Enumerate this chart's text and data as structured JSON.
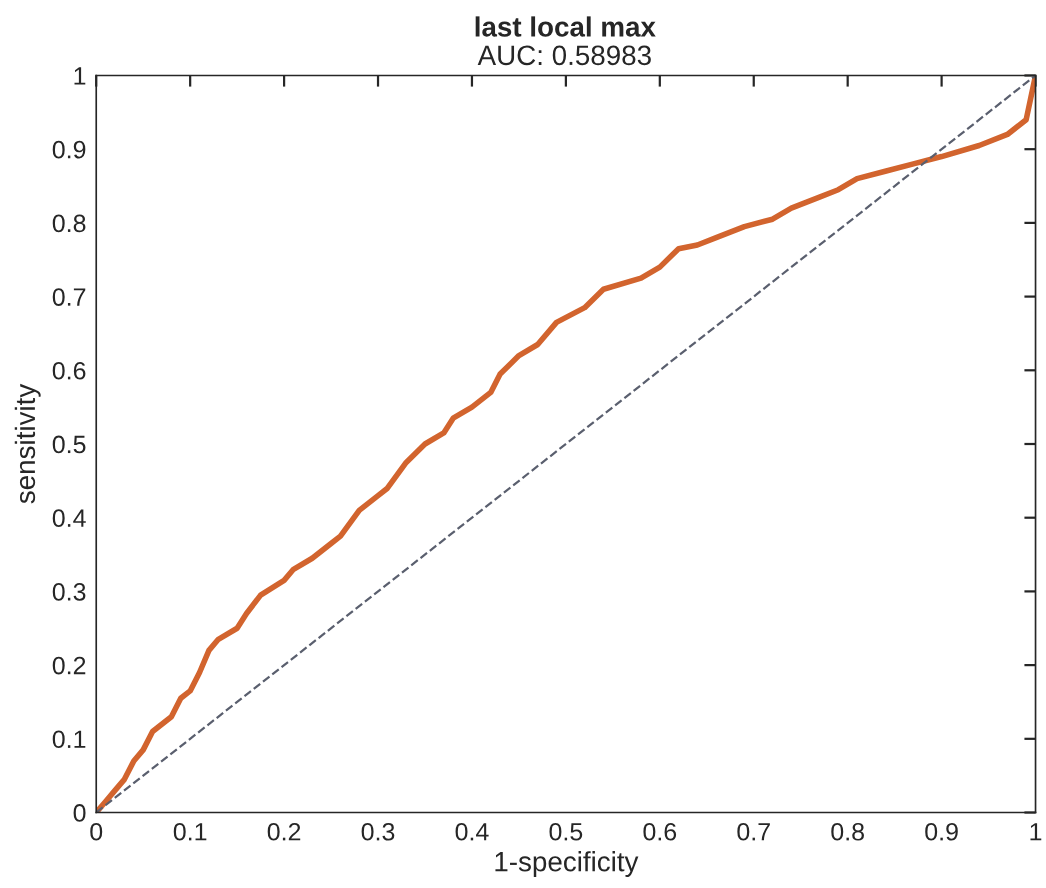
{
  "chart_data": {
    "type": "line",
    "title": "last local max",
    "subtitle": "AUC: 0.58983",
    "xlabel": "1-specificity",
    "ylabel": "sensitivity",
    "xlim": [
      0,
      1
    ],
    "ylim": [
      0,
      1
    ],
    "xticks": [
      0,
      0.1,
      0.2,
      0.3,
      0.4,
      0.5,
      0.6,
      0.7,
      0.8,
      0.9,
      1
    ],
    "yticks": [
      0,
      0.1,
      0.2,
      0.3,
      0.4,
      0.5,
      0.6,
      0.7,
      0.8,
      0.9,
      1
    ],
    "grid": false,
    "legend": false,
    "series": [
      {
        "color": "#d2642e",
        "line_style": "solid",
        "x": [
          0,
          0.01,
          0.02,
          0.03,
          0.04,
          0.05,
          0.06,
          0.08,
          0.09,
          0.1,
          0.11,
          0.12,
          0.13,
          0.15,
          0.16,
          0.175,
          0.2,
          0.21,
          0.23,
          0.25,
          0.26,
          0.28,
          0.3,
          0.31,
          0.33,
          0.35,
          0.37,
          0.38,
          0.4,
          0.42,
          0.43,
          0.45,
          0.47,
          0.49,
          0.52,
          0.54,
          0.58,
          0.6,
          0.62,
          0.64,
          0.66,
          0.69,
          0.72,
          0.74,
          0.77,
          0.79,
          0.81,
          0.84,
          0.87,
          0.9,
          0.94,
          0.97,
          0.99,
          0.995,
          1.0
        ],
        "values": [
          0,
          0.015,
          0.03,
          0.045,
          0.07,
          0.085,
          0.11,
          0.13,
          0.155,
          0.165,
          0.19,
          0.22,
          0.235,
          0.25,
          0.27,
          0.295,
          0.315,
          0.33,
          0.345,
          0.365,
          0.375,
          0.41,
          0.43,
          0.44,
          0.475,
          0.5,
          0.515,
          0.535,
          0.55,
          0.57,
          0.595,
          0.62,
          0.635,
          0.665,
          0.685,
          0.71,
          0.725,
          0.74,
          0.765,
          0.77,
          0.78,
          0.795,
          0.805,
          0.82,
          0.835,
          0.845,
          0.86,
          0.87,
          0.88,
          0.89,
          0.905,
          0.92,
          0.94,
          0.97,
          1.0
        ]
      },
      {
        "color": "#5a5f6e",
        "line_style": "dashed",
        "x": [
          0,
          1
        ],
        "values": [
          0,
          1
        ]
      }
    ]
  }
}
